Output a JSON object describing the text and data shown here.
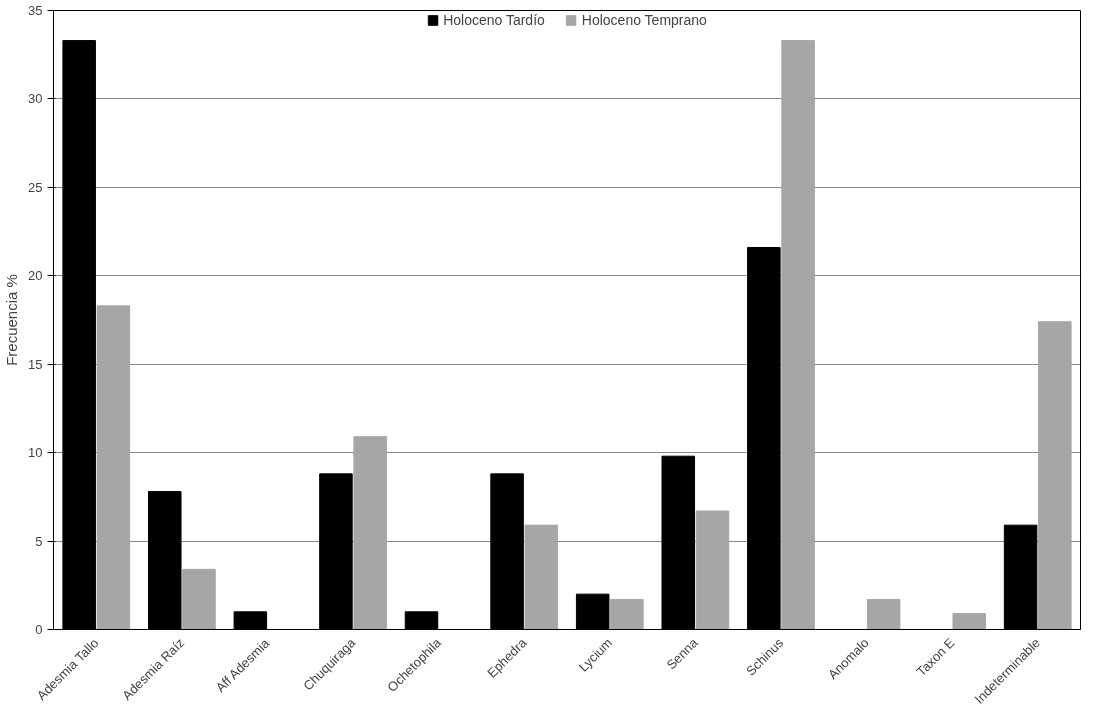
{
  "chart_data": {
    "type": "bar",
    "ylabel": "Frecuencia %",
    "categories": [
      "Adesmia Tallo",
      "Adesmia Raíz",
      "Aff Adesmia",
      "Chuquiraga",
      "Ochetophila",
      "Ephedra",
      "Lycium",
      "Senna",
      "Schinus",
      "Anomalo",
      "Taxon E",
      "Indeterminable"
    ],
    "series": [
      {
        "name": "Holoceno Tardío",
        "color": "#000000",
        "values": [
          33.3,
          7.8,
          1.0,
          8.8,
          1.0,
          8.8,
          2.0,
          9.8,
          21.6,
          null,
          null,
          5.9
        ]
      },
      {
        "name": "Holoceno Temprano",
        "color": "#a6a6a6",
        "values": [
          18.3,
          3.4,
          null,
          10.9,
          null,
          5.9,
          1.7,
          6.7,
          33.3,
          1.7,
          0.9,
          17.4
        ]
      }
    ],
    "ylim": [
      0,
      35
    ],
    "yticks": [
      0,
      5,
      10,
      15,
      20,
      25,
      30,
      35
    ],
    "grid": "y",
    "legend": "top"
  }
}
